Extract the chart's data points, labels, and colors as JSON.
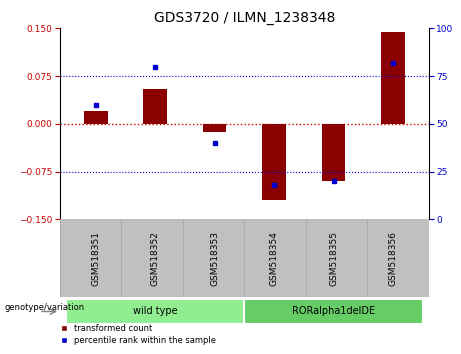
{
  "title": "GDS3720 / ILMN_1238348",
  "categories": [
    "GSM518351",
    "GSM518352",
    "GSM518353",
    "GSM518354",
    "GSM518355",
    "GSM518356"
  ],
  "red_bars": [
    0.02,
    0.055,
    -0.012,
    -0.12,
    -0.09,
    0.145
  ],
  "blue_dots": [
    60,
    80,
    40,
    18,
    20,
    82
  ],
  "ylim_left": [
    -0.15,
    0.15
  ],
  "ylim_right": [
    0,
    100
  ],
  "yticks_left": [
    -0.15,
    -0.075,
    0,
    0.075,
    0.15
  ],
  "yticks_right": [
    0,
    25,
    50,
    75,
    100
  ],
  "groups": [
    {
      "label": "wild type",
      "indices": [
        0,
        1,
        2
      ],
      "color": "#90EE90"
    },
    {
      "label": "RORalpha1delDE",
      "indices": [
        3,
        4,
        5
      ],
      "color": "#66CC66"
    }
  ],
  "bar_color": "#8B0000",
  "dot_color": "#0000CD",
  "zero_line_color": "#CC0000",
  "bg_plot": "#FFFFFF",
  "bg_tick": "#C0C0C0",
  "legend_red_label": "transformed count",
  "legend_blue_label": "percentile rank within the sample",
  "genotype_label": "genotype/variation",
  "title_fontsize": 10,
  "tick_fontsize": 6.5,
  "label_fontsize": 7,
  "bar_width": 0.4
}
